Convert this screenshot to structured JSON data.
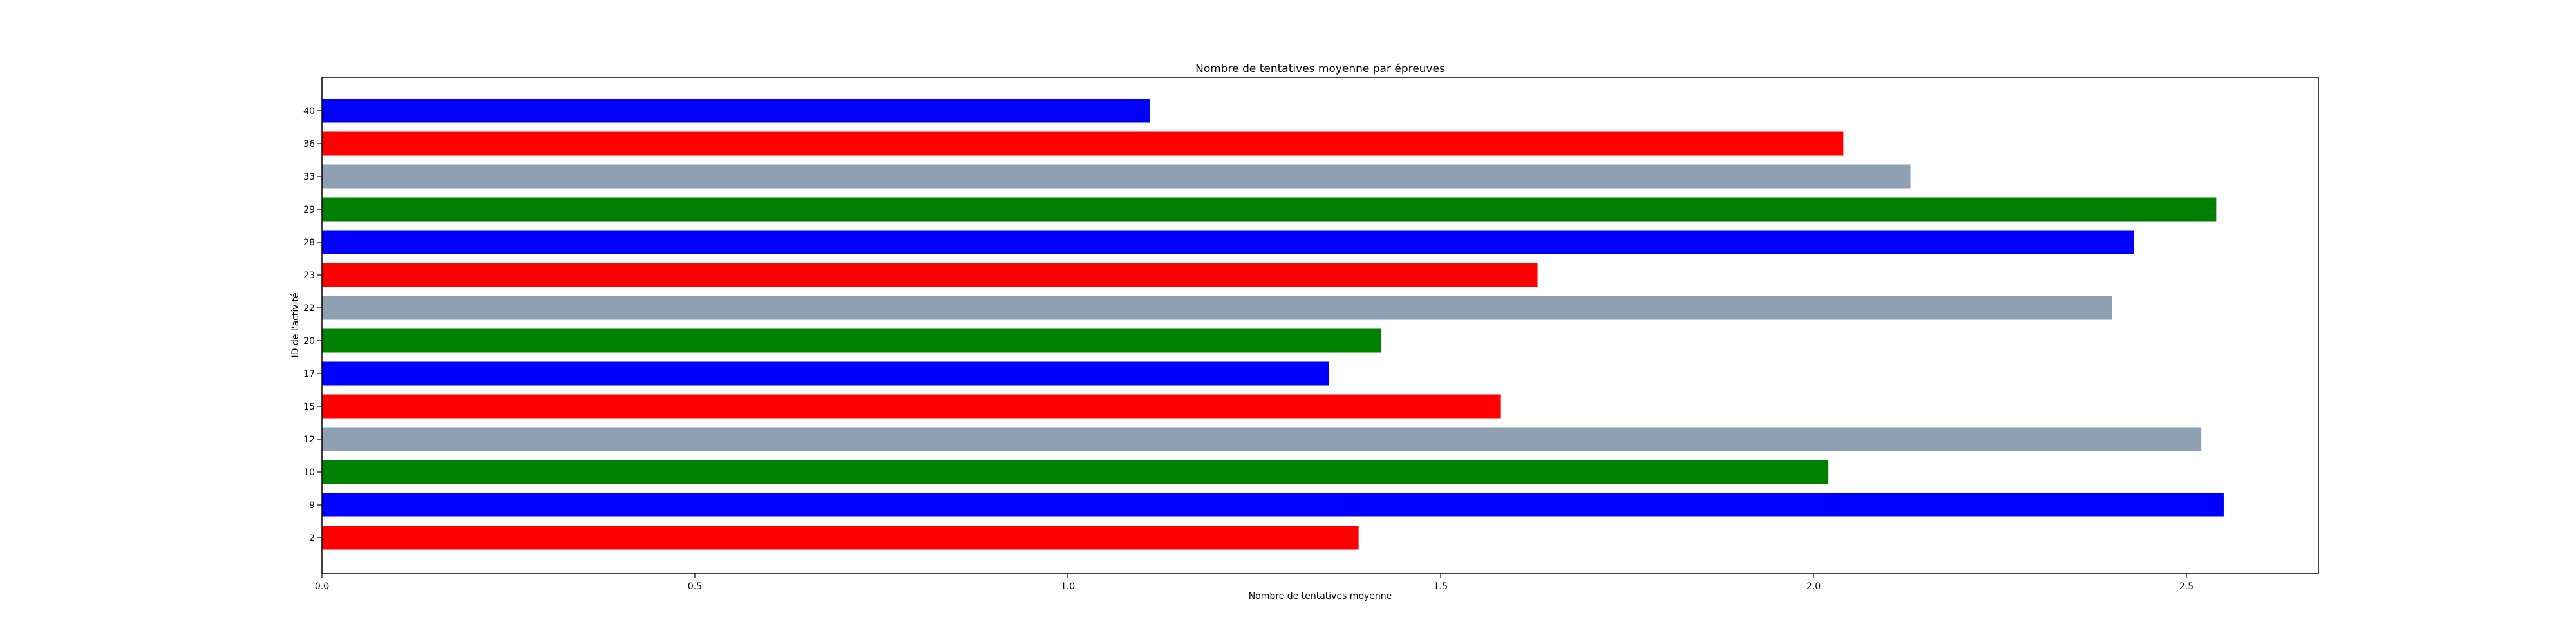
{
  "chart_data": {
    "type": "bar",
    "orientation": "horizontal",
    "title": "Nombre de tentatives moyenne par épreuves",
    "xlabel": "Nombre de tentatives moyenne",
    "ylabel": "ID de l'activité",
    "categories": [
      "2",
      "9",
      "10",
      "12",
      "15",
      "17",
      "20",
      "22",
      "23",
      "28",
      "29",
      "33",
      "36",
      "40"
    ],
    "values": [
      1.39,
      2.55,
      2.02,
      2.52,
      1.58,
      1.35,
      1.42,
      2.4,
      1.63,
      2.43,
      2.54,
      2.13,
      2.04,
      1.11
    ],
    "colors": [
      "#ff0000",
      "#0000ff",
      "#008000",
      "#8fa0b2",
      "#ff0000",
      "#0000ff",
      "#008000",
      "#8fa0b2",
      "#ff0000",
      "#0000ff",
      "#008000",
      "#8fa0b2",
      "#ff0000",
      "#0000ff"
    ],
    "xlim": [
      0,
      2.677
    ],
    "xticks": [
      "0.0",
      "0.5",
      "1.0",
      "1.5",
      "2.0",
      "2.5"
    ],
    "grid": false
  }
}
